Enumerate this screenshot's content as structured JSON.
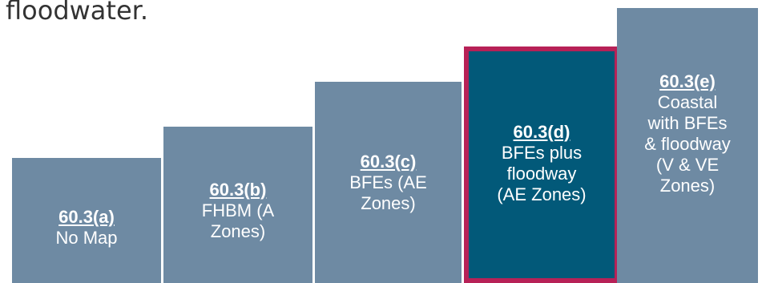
{
  "intro_text": "floodwater.",
  "steps": [
    {
      "code": "60.3(a)",
      "lines": [
        "No Map"
      ]
    },
    {
      "code": "60.3(b)",
      "lines": [
        "FHBM (A",
        "Zones)"
      ]
    },
    {
      "code": "60.3(c)",
      "lines": [
        "BFEs (AE",
        "Zones)"
      ]
    },
    {
      "code": "60.3(d)",
      "lines": [
        "BFEs plus",
        "floodway",
        "(AE Zones)"
      ]
    },
    {
      "code": "60.3(e)",
      "lines": [
        "Coastal",
        "with BFEs",
        "& floodway",
        "(V & VE",
        "Zones)"
      ]
    }
  ],
  "colors": {
    "step_fill": "#6e8aa3",
    "highlight_fill": "#025979",
    "highlight_border": "#b72157",
    "text": "#ffffff"
  }
}
